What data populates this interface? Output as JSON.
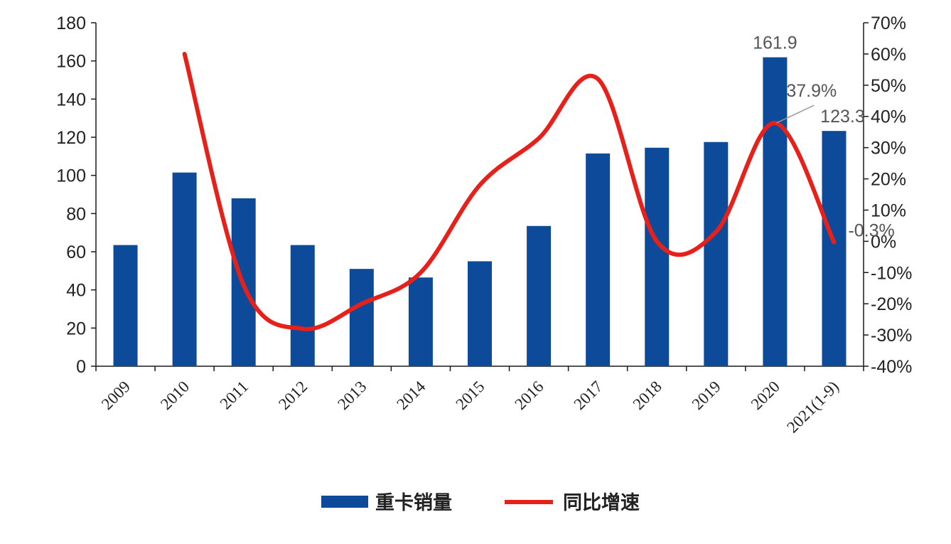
{
  "chart_data": {
    "type": "bar",
    "title": "",
    "categories": [
      "2009",
      "2010",
      "2011",
      "2012",
      "2013",
      "2014",
      "2015",
      "2016",
      "2017",
      "2018",
      "2019",
      "2020",
      "2021(1-9)"
    ],
    "series": [
      {
        "name": "重卡销量",
        "type": "bar",
        "axis": "left",
        "color": "#0d4a99",
        "values": [
          63.5,
          101.5,
          88.0,
          63.5,
          51.0,
          46.5,
          55.0,
          73.5,
          111.5,
          114.5,
          117.5,
          161.9,
          123.3
        ]
      },
      {
        "name": "同比增速",
        "type": "line",
        "axis": "right",
        "color": "#e8201a",
        "values": [
          null,
          60,
          -14,
          -28,
          -20,
          -10,
          18,
          33,
          52,
          0,
          3,
          37.9,
          -0.3
        ]
      }
    ],
    "ylim_left": [
      0,
      180
    ],
    "yticks_left": [
      "0",
      "20",
      "40",
      "60",
      "80",
      "100",
      "120",
      "140",
      "160",
      "180"
    ],
    "ylim_right": [
      -40,
      70
    ],
    "yticks_right": [
      "-40%",
      "-30%",
      "-20%",
      "-10%",
      "0%",
      "10%",
      "20%",
      "30%",
      "40%",
      "50%",
      "60%",
      "70%"
    ],
    "data_labels": {
      "bar_2020": "161.9",
      "bar_2021": "123.3",
      "line_2020": "37.9%",
      "line_2021": "-0.3%"
    },
    "legend": {
      "placement": "bottom",
      "bar_label": "重卡销量",
      "line_label": "同比增速"
    },
    "grid": false
  }
}
